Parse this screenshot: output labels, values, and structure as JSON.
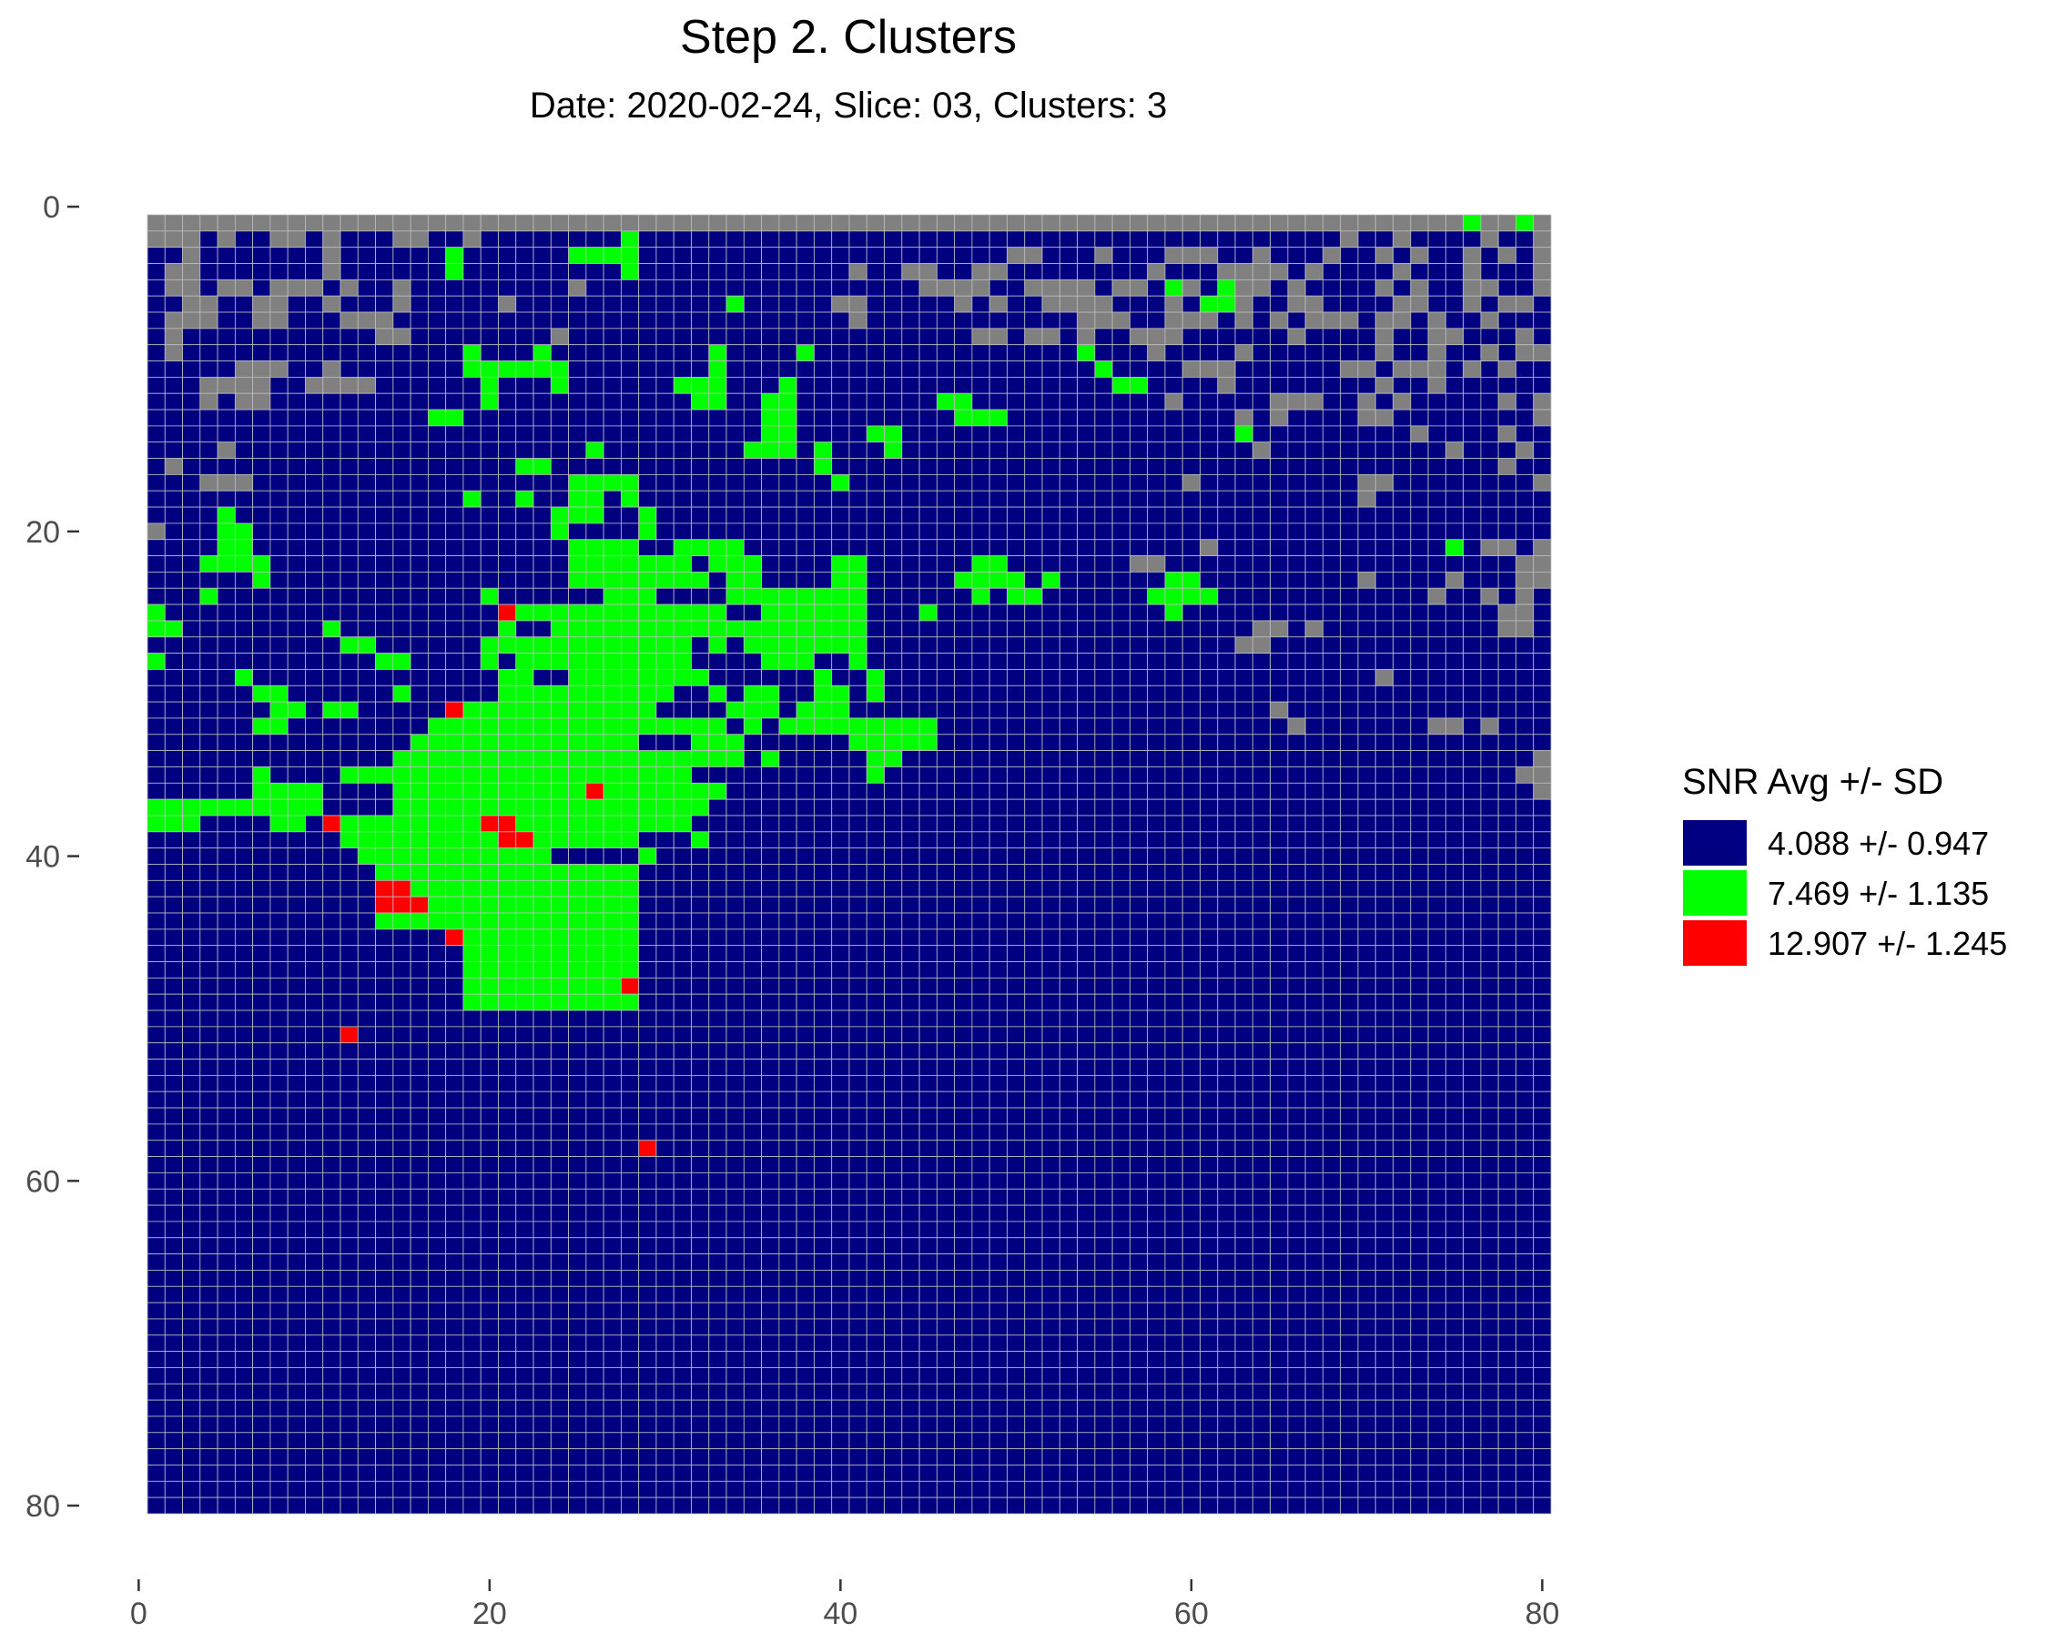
{
  "chart_data": {
    "type": "heatmap",
    "title": "Step 2. Clusters",
    "subtitle": "Date: 2020-02-24, Slice: 03, Clusters: 3",
    "xlabel": "",
    "ylabel": "",
    "x_ticks": [
      0,
      20,
      40,
      60,
      80
    ],
    "y_ticks": [
      0,
      20,
      40,
      60,
      80
    ],
    "xlim": [
      0,
      80
    ],
    "ylim": [
      80,
      0
    ],
    "y_reversed": true,
    "grid_cols": 80,
    "grid_rows": 80,
    "grid_extent_x": [
      0.5,
      80.5
    ],
    "grid_extent_y": [
      0.5,
      80.5
    ],
    "background_color": "#808080",
    "cell_border_color": "#bdbdbd",
    "legend": {
      "title": "SNR Avg +/- SD",
      "placement": "right",
      "entries": [
        {
          "label": "4.088 +/- 0.947",
          "color": "#000080"
        },
        {
          "label": "7.469 +/- 1.135",
          "color": "#00ff00"
        },
        {
          "label": "12.907 +/- 1.245",
          "color": "#ff0000"
        }
      ]
    },
    "cluster_rows": [
      "...........................................................................G..G.",
      "...B.BB..B.BBB..BB.BBBBBBBBGBBBBBBBBBBBBBBBBBBBBBBBBBBBBBBBBBBBBBBBB.BB.BBBB.BB.",
      "BB.BBBBBBB.BBBBBBGBBBBBBGGGGBBBBBBBBBBBBBBBBBBBBB..BBB.BBB...BB.BBB.BB.B.BB.B.B.",
      "B..BBBBBBB.BBBBBBGBBBBBBBBBGBBBBBBBBBBBB.BB..BB..BBBBBBBB.BBB....B.BBBB.BBB.BBB.",
      "B..B..B...B.BB.BBBBBBBBB.BBBBBBBBBBBBBBBBBBB....BB....B..BG.BG..B.BBBB.B.BB..BB.",
      "BB..BB..BB.BBB.BBBBB.BBBBBBBBBBBBGBBBBB..BBBBB.B.BB....BBB.BGG.BB..BBBB..BB.B..B",
      "B...BB..BBB...BBBBBBBBBBBBBBBBBBBBBBBBBB.BBBBBBBBBBBB...BB...B.B.B...B..B.BB.BBB",
      "B.BBBBBBBBBBB..BBBBBBBB.BBBBBBBBBBBBBBBBBBBBBBB..B..B.BB...BBBBBB.BBBB.BB..BBB.B",
      "B.BBBBBBBBBBBBBBBBGBBBGBBBBBBBBBGBBBBGBBBBBBBBBBBBBBBGBBB.BBBB.BBBBBBB.BB.BB.B..",
      "BBBBB...BB.BBBBBBBGGGGGGBBBBBBBBGBBBBBBBBBBBBBBBBBBBBBGBBBB...BBBBBB..B...B.B.BB",
      "BBB....BB....BBBBBBGBBBGBBBBBBGGGBBBGBBBBBBBBBBBBBBBBBBGGBBBB.BBBBBBBB.BB.BBBBBB",
      "BBB.B..BBBBBBBBBBBBGBBBBBBBBBBBGGBBGGBBBBBBBBGGBBBBBBBBBBB.BBBBB...BB.B.BBBBB.B.",
      "BBBBBBBBBBBBBBBBGGBBBBBBBBBBBBBBBBBGGBBBBBBBBBGGGBBBBBBBBBBBBB.B.BBBB..BBBBBBBB.",
      "BBBBBBBBBBBBBBBBBBBBBBBBBBBBBBBBBBBGGBBBBGGBBBBBBBBBBBBBBBBBBBGBBBBBBBBB.BBBB.BB",
      "BBBB.BBBBBBBBBBBBBBBBBBBBGBBBBBBBBGGGBGBBBGBBBBBBBBBBBBBBBBBBBB.BBBBBBBBBB.BBB.B",
      "B.BBBBBBBBBBBBBBBBBBBGGBBBBBBBBBBBBBBBGBBBBBBBBBBBBBBBBBBBBBBBBBBBBBBBBBBBBBB.BB",
      "BBB...BBBBBBBBBBBBBBBBBBGGGGBBBBBBBBBBBGBBBBBBBBBBBBBBBBBBB.BBBBBBBBB..BBBBBBBB.",
      "BBBBBBBBBBBBBBBBBBGBBGBBGGBGBBBBBBBBBBBBBBBBBBBBBBBBBBBBBBBBBBBBBBBBB.BBBBBBBBBB",
      "BBBBGBBBBBBBBBBBBBBBBBBGGGBBGBBBBBBBBBBBBBBBBBBBBBBBBBBBBBBBBBBBBBBBBBBBBBBBBBBB",
      ".BBBGGBBBBBBBBBBBBBBBBBGBBBBGBBBBBBBBBBBBBBBBBBBBBBBBBBBBBBBBBBBBBBBBBBBBBBBBBBB",
      "BBBBGGBBBBBBBBBBBBBBBBBBGGGGBBGGGGBBBBBBBBBBBBBBBBBBBBBBBBBB.BBBBBBBBBBBBBGB..B.",
      "BBBGGGGBBBBBBBBBBBBBBBBBGGGGGGGBGGGBBBBGGBBBBBBGGBBBBBBB..BBBBBBBBBBBBBBBBBBBB..",
      "BBBBBBGBBBBBBBBBBBBBBBBBGGGGGGGGBGGBBBBGGBBBBBGGGGBGBBBBBBGGBBBBBBBBB.BBBB.BBB..",
      "BBBGBBBBBBBBBBBBBBBGBBBBBBGGGBBBBGGGGGGGGBBBBBBGBGGBBBBBBGGGGBBBBBBBBBBBB.BB.B.B",
      "GBBBBBBBBBBBBBBBBBBBRGGGGGGGGGGGGBBGGGGGGBBBGBBBBBBBBBBBBBGBBBBBBBBBBBBBBBBBB..B",
      "GGBBBBBBBBGBBBBBBBBBGBBGGGGGGGGGGGGGGGGGGBBBBBBBBBBBBBBBBBBBBBB..B.BBBBBBBBBB..B",
      "BBBBBBBBBBBGGBBBBBBGGGGGGGGGGGGBGBGGGGGGGBBBBBBBBBBBBBBBBBBBBB..BBBBBBBBBBBBBBBB",
      "GBBBBBBBBBBBBGGBBBBGBGGGGGGGGGGBBBBGGGBBGBBBBBBBBBBBBBBBBBBBBBBBBBBBBBBBBBBBBBBB",
      "BBBBBGBBBBBBBBBBBBBBGGBBGGGGGGGGBBBBBBGBBGBBBBBBBBBBBBBBBBBBBBBBBBBBBB.BBBBBBBBB",
      "BBBBBBGGBBBBBBGBBBBBGGGGGGGGGGBBGBGGBBGGBGBBBBBBBBBBBBBBBBBBBBBBBBBBBBBBBBBBBBBB",
      "BBBBBBBGGBGGBBBBBRGGGGGGGGGGGBBBBGGGBGGGBBBBBBBBBBBBBBBBBBBBBBBB.BBBBBBBBBBBBBBB",
      "BBBBBBGGBBBBBBBBGGGGGGGGGGGGGGGGGBGBGGGGGGGGGBBBBBBBBBBBBBBBBBBBB.BBBBBBB..B.BBB",
      "BBBBBBBBBBBBBBBGGGGGGGGGGGGGBBBGGGBBBBBBGGGGGBBBBBBBBBBBBBBBBBBBBBBBBBBBBBBBBBBB",
      "BBBBBBBBBBBBBBGGGGGGGGGGGGGGGGGGGGBGBBBBBGGBBBBBBBBBBBBBBBBBBBBBBBBBBBBBBBBBBBB.",
      "BBBBBBGBBBBGGGGGGGGGGGGGGGGGGGGBBBBBBBBBBGBBBBBBBBBBBBBBBBBBBBBBBBBBBBBBBBBBBB..",
      "BBBBBBGGGGBBBBGGGGGGGGGGGRGGGGGGGBBBBBBBBBBBBBBBBBBBBBBBBBBBBBBBBBBBBBBBBBBBBBB.",
      "GGGGGGGGGGBBBBGGGGGGGGGGGGGGGGGGBBBBBBBBBBBBBBBBBBBBBBBBBBBBBBBBBBBBBBBBBBBBBBBB",
      "GGGBBBBGGBRGGGGGGGGRRGGGGGGGGGGBBBBBBBBBBBBBBBBBBBBBBBBBBBBBBBBBBBBBBBBBBBBBBBBB",
      "BBBBBBBBBBBGGGGGGGGGRRGGGGGGBBBGBBBBBBBBBBBBBBBBBBBBBBBBBBBBBBBBBBBBBBBBBBBBBBBB",
      "BBBBBBBBBBBBGGGGGGGGGGGBBBBBGBBBBBBBBBBBBBBBBBBBBBBBBBBBBBBBBBBBBBBBBBBBBBBBBBBB",
      "BBBBBBBBBBBBBGGGGGGGGGGGGGGGBBBBBBBBBBBBBBBBBBBBBBBBBBBBBBBBBBBBBBBBBBBBBBBBBBBB",
      "BBBBBBBBBBBBBRRGGGGGGGGGGGGGBBBBBBBBBBBBBBBBBBBBBBBBBBBBBBBBBBBBBBBBBBBBBBBBBBBB",
      "BBBBBBBBBBBBBRRRGGGGGGGGGGGGBBBBBBBBBBBBBBBBBBBBBBBBBBBBBBBBBBBBBBBBBBBBBBBBBBBB",
      "BBBBBBBBBBBBBGGGGGGGGGGGGGGGBBBBBBBBBBBBBBBBBBBBBBBBBBBBBBBBBBBBBBBBBBBBBBBBBBBB",
      "BBBBBBBBBBBBBBBBBRGGGGGGGGGGBBBBBBBBBBBBBBBBBBBBBBBBBBBBBBBBBBBBBBBBBBBBBBBBBBBB",
      "BBBBBBBBBBBBBBBBBBGGGGGGGGGGBBBBBBBBBBBBBBBBBBBBBBBBBBBBBBBBBBBBBBBBBBBBBBBBBBBB",
      "BBBBBBBBBBBBBBBBBBGGGGGGGGGGBBBBBBBBBBBBBBBBBBBBBBBBBBBBBBBBBBBBBBBBBBBBBBBBBBBB",
      "BBBBBBBBBBBBBBBBBBGGGGGGGGGRBBBBBBBBBBBBBBBBBBBBBBBBBBBBBBBBBBBBBBBBBBBBBBBBBBBB",
      "BBBBBBBBBBBBBBBBBBGGGGGGGGGGBBBBBBBBBBBBBBBBBBBBBBBBBBBBBBBBBBBBBBBBBBBBBBBBBBBB",
      "BBBBBBBBBBBBBBBBBBBBBBBBBBBBBBBBBBBBBBBBBBBBBBBBBBBBBBBBBBBBBBBBBBBBBBBBBBBBBBBB",
      "BBBBBBBBBBBRBBBBBBBBBBBBBBBBBBBBBBBBBBBBBBBBBBBBBBBBBBBBBBBBBBBBBBBBBBBBBBBBBBBB",
      "BBBBBBBBBBBBBBBBBBBBBBBBBBBBBBBBBBBBBBBBBBBBBBBBBBBBBBBBBBBBBBBBBBBBBBBBBBBBBBBB",
      "BBBBBBBBBBBBBBBBBBBBBBBBBBBBBBBBBBBBBBBBBBBBBBBBBBBBBBBBBBBBBBBBBBBBBBBBBBBBBBBB",
      "BBBBBBBBBBBBBBBBBBBBBBBBBBBBBBBBBBBBBBBBBBBBBBBBBBBBBBBBBBBBBBBBBBBBBBBBBBBBBBBB",
      "BBBBBBBBBBBBBBBBBBBBBBBBBBBBBBBBBBBBBBBBBBBBBBBBBBBBBBBBBBBBBBBBBBBBBBBBBBBBBBBB",
      "BBBBBBBBBBBBBBBBBBBBBBBBBBBBBBBBBBBBBBBBBBBBBBBBBBBBBBBBBBBBBBBBBBBBBBBBBBBBBBBB",
      "BBBBBBBBBBBBBBBBBBBBBBBBBBBBBBBBBBBBBBBBBBBBBBBBBBBBBBBBBBBBBBBBBBBBBBBBBBBBBBBB",
      "BBBBBBBBBBBBBBBBBBBBBBBBBBBBRBBBBBBBBBBBBBBBBBBBBBBBBBBBBBBBBBBBBBBBBBBBBBBBBBBB",
      "BBBBBBBBBBBBBBBBBBBBBBBBBBBBBBBBBBBBBBBBBBBBBBBBBBBBBBBBBBBBBBBBBBBBBBBBBBBBBBBB",
      "BBBBBBBBBBBBBBBBBBBBBBBBBBBBBBBBBBBBBBBBBBBBBBBBBBBBBBBBBBBBBBBBBBBBBBBBBBBBBBBB",
      "BBBBBBBBBBBBBBBBBBBBBBBBBBBBBBBBBBBBBBBBBBBBBBBBBBBBBBBBBBBBBBBBBBBBBBBBBBBBBBBB",
      "BBBBBBBBBBBBBBBBBBBBBBBBBBBBBBBBBBBBBBBBBBBBBBBBBBBBBBBBBBBBBBBBBBBBBBBBBBBBBBBB",
      "BBBBBBBBBBBBBBBBBBBBBBBBBBBBBBBBBBBBBBBBBBBBBBBBBBBBBBBBBBBBBBBBBBBBBBBBBBBBBBBB",
      "BBBBBBBBBBBBBBBBBBBBBBBBBBBBBBBBBBBBBBBBBBBBBBBBBBBBBBBBBBBBBBBBBBBBBBBBBBBBBBBB",
      "BBBBBBBBBBBBBBBBBBBBBBBBBBBBBBBBBBBBBBBBBBBBBBBBBBBBBBBBBBBBBBBBBBBBBBBBBBBBBBBB",
      "BBBBBBBBBBBBBBBBBBBBBBBBBBBBBBBBBBBBBBBBBBBBBBBBBBBBBBBBBBBBBBBBBBBBBBBBBBBBBBBB",
      "BBBBBBBBBBBBBBBBBBBBBBBBBBBBBBBBBBBBBBBBBBBBBBBBBBBBBBBBBBBBBBBBBBBBBBBBBBBBBBBB",
      "BBBBBBBBBBBBBBBBBBBBBBBBBBBBBBBBBBBBBBBBBBBBBBBBBBBBBBBBBBBBBBBBBBBBBBBBBBBBBBBB",
      "BBBBBBBBBBBBBBBBBBBBBBBBBBBBBBBBBBBBBBBBBBBBBBBBBBBBBBBBBBBBBBBBBBBBBBBBBBBBBBBB",
      "BBBBBBBBBBBBBBBBBBBBBBBBBBBBBBBBBBBBBBBBBBBBBBBBBBBBBBBBBBBBBBBBBBBBBBBBBBBBBBBB",
      "BBBBBBBBBBBBBBBBBBBBBBBBBBBBBBBBBBBBBBBBBBBBBBBBBBBBBBBBBBBBBBBBBBBBBBBBBBBBBBBB",
      "BBBBBBBBBBBBBBBBBBBBBBBBBBBBBBBBBBBBBBBBBBBBBBBBBBBBBBBBBBBBBBBBBBBBBBBBBBBBBBBB",
      "BBBBBBBBBBBBBBBBBBBBBBBBBBBBBBBBBBBBBBBBBBBBBBBBBBBBBBBBBBBBBBBBBBBBBBBBBBBBBBBB",
      "BBBBBBBBBBBBBBBBBBBBBBBBBBBBBBBBBBBBBBBBBBBBBBBBBBBBBBBBBBBBBBBBBBBBBBBBBBBBBBBB",
      "BBBBBBBBBBBBBBBBBBBBBBBBBBBBBBBBBBBBBBBBBBBBBBBBBBBBBBBBBBBBBBBBBBBBBBBBBBBBBBBB",
      "BBBBBBBBBBBBBBBBBBBBBBBBBBBBBBBBBBBBBBBBBBBBBBBBBBBBBBBBBBBBBBBBBBBBBBBBBBBBBBBB",
      "BBBBBBBBBBBBBBBBBBBBBBBBBBBBBBBBBBBBBBBBBBBBBBBBBBBBBBBBBBBBBBBBBBBBBBBBBBBBBBBB",
      "BBBBBBBBBBBBBBBBBBBBBBBBBBBBBBBBBBBBBBBBBBBBBBBBBBBBBBBBBBBBBBBBBBBBBBBBBBBBBBBB",
      "BBBBBBBBBBBBBBBBBBBBBBBBBBBBBBBBBBBBBBBBBBBBBBBBBBBBBBBBBBBBBBBBBBBBBBBBBBBBBBBB",
      "BBBBBBBBBBBBBBBBBBBBBBBBBBBBBBBBBBBBBBBBBBBBBBBBBBBBBBBBBBBBBBBBBBBBBBBBBBBBBBBB"
    ]
  }
}
